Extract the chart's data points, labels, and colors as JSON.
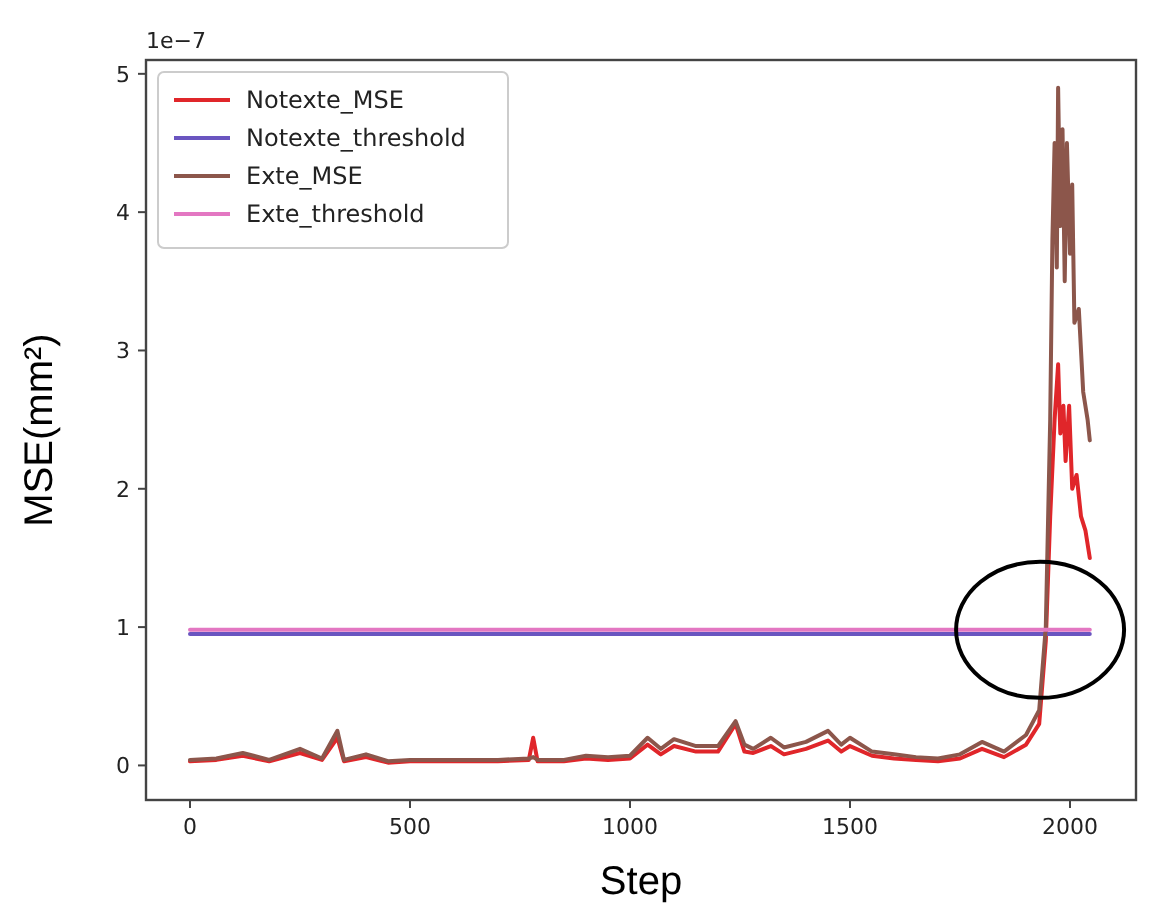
{
  "chart_data": {
    "type": "line",
    "xlabel": "Step",
    "ylabel": "MSE(mm²)",
    "annotations": [
      "1e−7"
    ],
    "xlim": [
      -100,
      2150
    ],
    "ylim": [
      -0.25,
      5.1
    ],
    "xticks": [
      0,
      500,
      1000,
      1500,
      2000
    ],
    "yticks": [
      0,
      1,
      2,
      3,
      4,
      5
    ],
    "grid": false,
    "legend": "top left",
    "series": [
      {
        "name": "Notexte_MSE",
        "color": "#e0262a",
        "x": [
          0,
          60,
          120,
          180,
          250,
          300,
          335,
          350,
          400,
          450,
          500,
          600,
          700,
          770,
          780,
          790,
          850,
          900,
          950,
          1000,
          1040,
          1070,
          1100,
          1150,
          1200,
          1240,
          1260,
          1280,
          1320,
          1350,
          1400,
          1450,
          1480,
          1500,
          1550,
          1600,
          1650,
          1700,
          1750,
          1800,
          1850,
          1900,
          1930,
          1945,
          1955,
          1965,
          1973,
          1978,
          1985,
          1990,
          1998,
          2005,
          2015,
          2025,
          2035,
          2045
        ],
        "values": [
          0.03,
          0.04,
          0.07,
          0.03,
          0.09,
          0.04,
          0.2,
          0.03,
          0.06,
          0.02,
          0.03,
          0.03,
          0.03,
          0.04,
          0.2,
          0.03,
          0.03,
          0.05,
          0.04,
          0.05,
          0.15,
          0.08,
          0.14,
          0.1,
          0.1,
          0.3,
          0.1,
          0.09,
          0.14,
          0.08,
          0.12,
          0.18,
          0.1,
          0.14,
          0.07,
          0.05,
          0.04,
          0.03,
          0.05,
          0.12,
          0.06,
          0.15,
          0.3,
          0.9,
          1.8,
          2.5,
          2.9,
          2.4,
          2.6,
          2.2,
          2.6,
          2,
          2.1,
          1.8,
          1.7,
          1.5
        ]
      },
      {
        "name": "Notexte_threshold",
        "color": "#6a55c0",
        "x": [
          0,
          2045
        ],
        "values": [
          0.95,
          0.95
        ]
      },
      {
        "name": "Exte_MSE",
        "color": "#8c564b",
        "x": [
          0,
          60,
          120,
          180,
          250,
          300,
          335,
          350,
          400,
          450,
          500,
          600,
          700,
          770,
          780,
          790,
          850,
          900,
          950,
          1000,
          1040,
          1070,
          1100,
          1150,
          1200,
          1240,
          1260,
          1280,
          1320,
          1350,
          1400,
          1450,
          1480,
          1500,
          1550,
          1600,
          1650,
          1700,
          1750,
          1800,
          1850,
          1900,
          1930,
          1945,
          1955,
          1960,
          1965,
          1970,
          1973,
          1978,
          1983,
          1988,
          1993,
          2000,
          2005,
          2010,
          2020,
          2030,
          2040,
          2045
        ],
        "values": [
          0.04,
          0.05,
          0.09,
          0.04,
          0.12,
          0.05,
          0.25,
          0.04,
          0.08,
          0.03,
          0.04,
          0.04,
          0.04,
          0.05,
          0.06,
          0.04,
          0.04,
          0.07,
          0.06,
          0.07,
          0.2,
          0.12,
          0.19,
          0.14,
          0.14,
          0.32,
          0.15,
          0.12,
          0.2,
          0.13,
          0.17,
          0.25,
          0.15,
          0.2,
          0.1,
          0.08,
          0.06,
          0.05,
          0.08,
          0.17,
          0.1,
          0.22,
          0.4,
          1,
          2.5,
          3.8,
          4.5,
          3.6,
          4.9,
          3.9,
          4.6,
          3.5,
          4.5,
          3.7,
          4.2,
          3.2,
          3.3,
          2.7,
          2.5,
          2.35
        ]
      },
      {
        "name": "Exte_threshold",
        "color": "#e377c2",
        "x": [
          0,
          2045
        ],
        "values": [
          0.98,
          0.98
        ]
      }
    ]
  }
}
